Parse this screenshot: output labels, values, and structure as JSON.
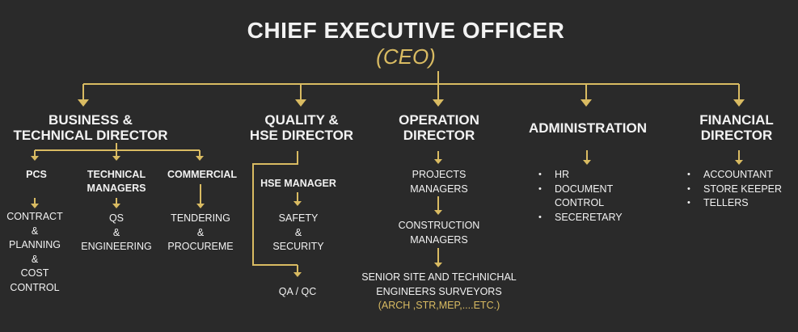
{
  "colors": {
    "background": "#2a2a2a",
    "accent": "#d9bb62",
    "text": "#f2f2f2"
  },
  "ceo": {
    "title": "CHIEF EXECUTIVE OFFICER",
    "abbr": "(CEO)"
  },
  "business": {
    "line1": "BUSINESS &",
    "line2": "TECHNICAL DIRECTOR",
    "pcs": {
      "label": "PCS",
      "items": [
        "CONTRACT",
        "&",
        "PLANNING",
        "&",
        "COST",
        "CONTROL"
      ]
    },
    "tech": {
      "line1": "TECHNICAL",
      "line2": "MANAGERS",
      "items": [
        "QS",
        "&",
        "ENGINEERING"
      ]
    },
    "commercial": {
      "label": "COMMERCIAL",
      "items": [
        "TENDERING",
        "&",
        "PROCUREME"
      ]
    }
  },
  "quality": {
    "line1": "QUALITY &",
    "line2": "HSE DIRECTOR",
    "hse_manager": "HSE MANAGER",
    "safety": [
      "SAFETY",
      "&",
      "SECURITY"
    ],
    "qaqc": "QA / QC"
  },
  "operation": {
    "line1": "OPERATION",
    "line2": "DIRECTOR",
    "pm": [
      "PROJECTS",
      "MANAGERS"
    ],
    "cm": [
      "CONSTRUCTION",
      "MANAGERS"
    ],
    "senior": [
      "SENIOR SITE AND TECHNICHAL",
      "ENGINEERS SURVEYORS"
    ],
    "disciplines": "(ARCH ,STR,MEP,....ETC.)"
  },
  "administration": {
    "title": "ADMINISTRATION",
    "items": [
      "HR",
      "DOCUMENT CONTROL",
      "SECERETARY"
    ]
  },
  "financial": {
    "line1": "FINANCIAL",
    "line2": "DIRECTOR",
    "items": [
      "ACCOUNTANT",
      "STORE KEEPER",
      "TELLERS"
    ]
  }
}
